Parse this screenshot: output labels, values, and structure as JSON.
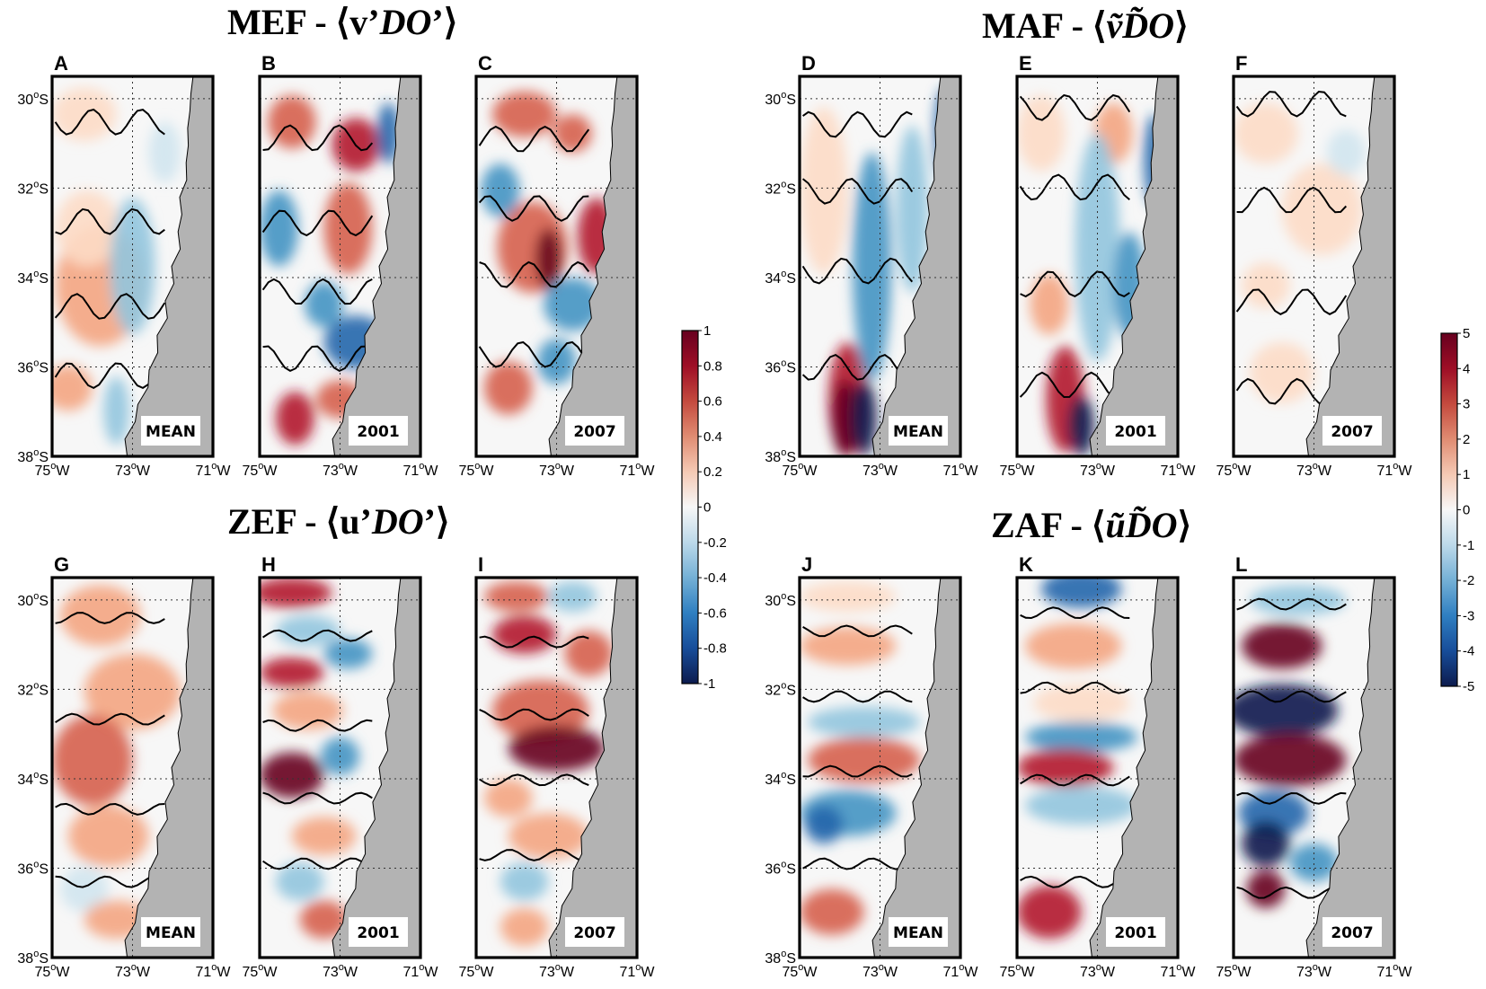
{
  "titles": {
    "mef": {
      "prefix": "MEF - ⟨v’",
      "var": "DO",
      "suffix": "’⟩"
    },
    "maf": {
      "prefix": "MAF - ⟨",
      "flux_a": "ṽ",
      "var": "D̃O",
      "suffix": "⟩"
    },
    "zef": {
      "prefix": "ZEF - ⟨u’",
      "var": "DO",
      "suffix": "’⟩"
    },
    "zaf": {
      "prefix": "ZAF - ⟨",
      "flux_a": "ũ",
      "var": "D̃O",
      "suffix": "⟩"
    }
  },
  "panels": [
    {
      "letter": "A",
      "label": "MEAN",
      "colorbar": "cb1"
    },
    {
      "letter": "B",
      "label": "2001",
      "colorbar": "cb1"
    },
    {
      "letter": "C",
      "label": "2007",
      "colorbar": "cb1"
    },
    {
      "letter": "D",
      "label": "MEAN",
      "colorbar": "cb2"
    },
    {
      "letter": "E",
      "label": "2001",
      "colorbar": "cb2"
    },
    {
      "letter": "F",
      "label": "2007",
      "colorbar": "cb2"
    },
    {
      "letter": "G",
      "label": "MEAN",
      "colorbar": "cb1"
    },
    {
      "letter": "H",
      "label": "2001",
      "colorbar": "cb1"
    },
    {
      "letter": "I",
      "label": "2007",
      "colorbar": "cb1"
    },
    {
      "letter": "J",
      "label": "MEAN",
      "colorbar": "cb2"
    },
    {
      "letter": "K",
      "label": "2001",
      "colorbar": "cb2"
    },
    {
      "letter": "L",
      "label": "2007",
      "colorbar": "cb2"
    }
  ],
  "axes": {
    "lat_ticks": [
      "30",
      "32",
      "34",
      "36",
      "38"
    ],
    "lat_hemi": "S",
    "lon_ticks": [
      "75",
      "73",
      "71"
    ],
    "lon_hemi": "W",
    "deg_symbol": "o",
    "lat_range": [
      -38,
      -29.5
    ],
    "lon_range": [
      -75,
      -71
    ]
  },
  "colorbars": {
    "cb1": {
      "ticks": [
        "1",
        "0.8",
        "0.6",
        "0.4",
        "0.2",
        "0",
        "-0.2",
        "-0.4",
        "-0.6",
        "-0.8",
        "-1"
      ],
      "range": [
        -1,
        1
      ]
    },
    "cb2": {
      "ticks": [
        "5",
        "4",
        "3",
        "2",
        "1",
        "0",
        "-1",
        "-2",
        "-3",
        "-4",
        "-5"
      ],
      "range": [
        -5,
        5
      ]
    }
  },
  "contour_label": "0",
  "colors": {
    "land": "#b3b3b3",
    "positive": "#67001f",
    "negative": "#0c1b4d",
    "neutral": "#f7f7f7"
  }
}
